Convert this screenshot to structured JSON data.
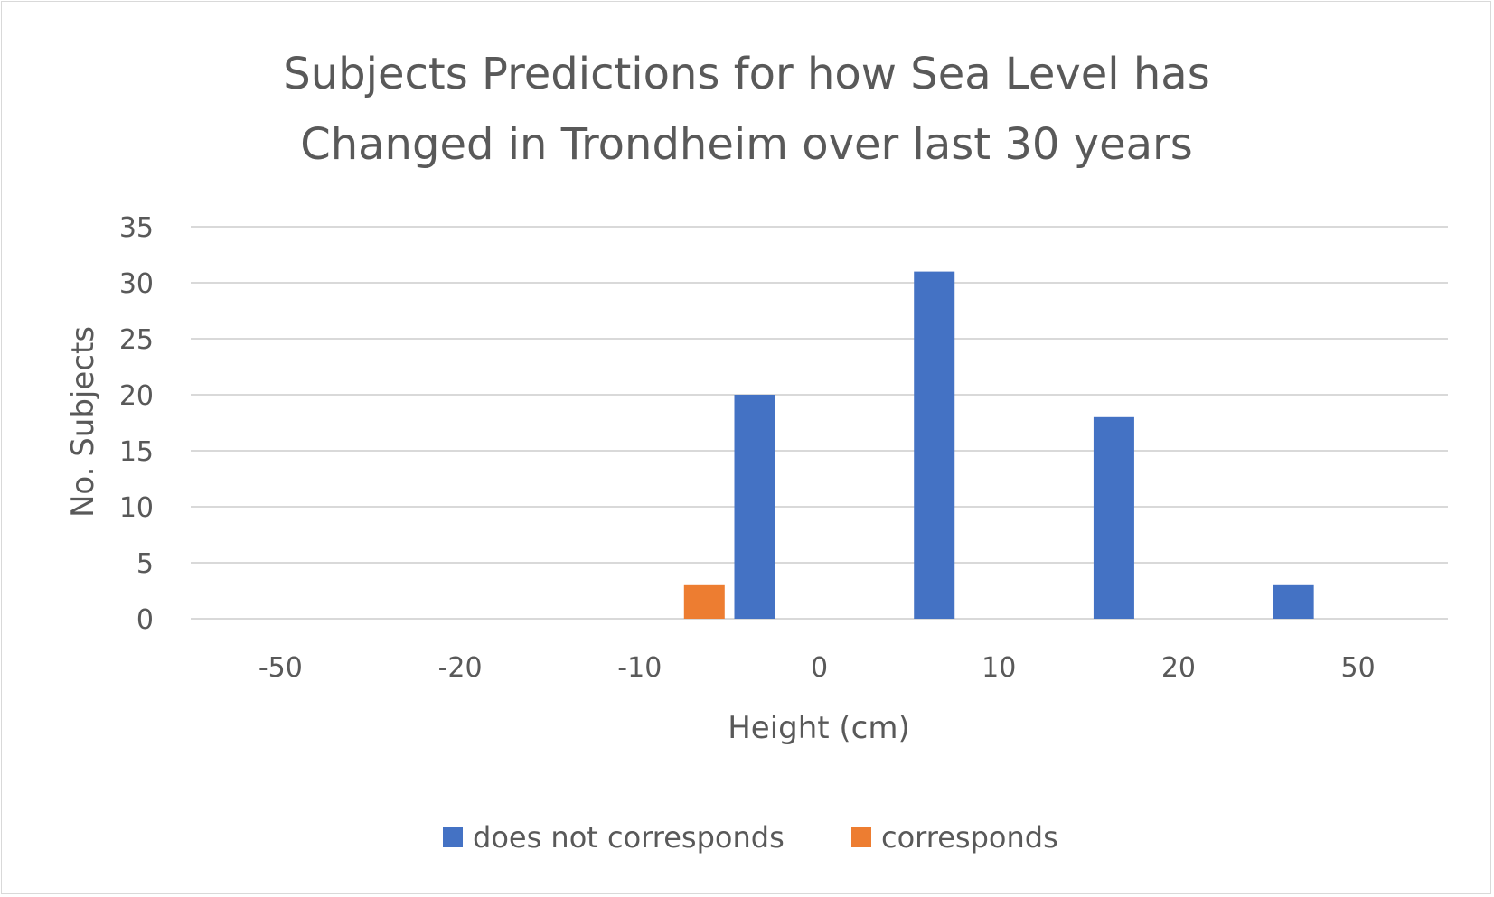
{
  "chart_data": {
    "type": "bar",
    "title_lines": [
      "Subjects Predictions for how Sea Level has",
      "Changed in Trondheim over last 30 years"
    ],
    "xlabel": "Height (cm)",
    "ylabel": "No. Subjects",
    "categories": [
      "-50",
      "-20",
      "-10",
      "0",
      "10",
      "20",
      "50"
    ],
    "series": [
      {
        "name": "does not corresponds",
        "color": "#4472c4",
        "values": [
          0,
          0,
          0,
          20,
          31,
          18,
          3
        ]
      },
      {
        "name": "corresponds",
        "color": "#ed7d31",
        "values": [
          0,
          0,
          3,
          0,
          0,
          0,
          0
        ]
      }
    ],
    "ylim": [
      0,
      35
    ],
    "yticks": [
      0,
      5,
      10,
      15,
      20,
      25,
      30,
      35
    ],
    "grid": true,
    "legend_position": "bottom"
  }
}
